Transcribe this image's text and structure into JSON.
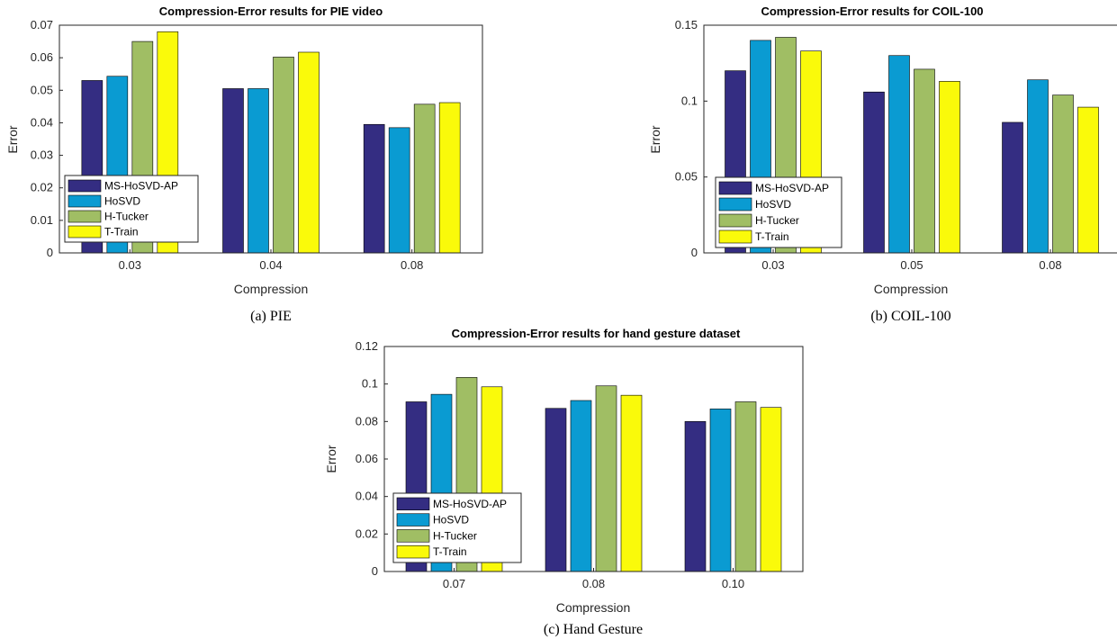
{
  "palette": [
    "#342D82",
    "#0A9BD2",
    "#A0BE64",
    "#FAFA0A"
  ],
  "chart_data": [
    {
      "type": "bar",
      "title": "Compression-Error results for PIE video",
      "xlabel": "Compression",
      "ylabel": "Error",
      "caption": "(a) PIE",
      "categories": [
        "0.03",
        "0.04",
        "0.08"
      ],
      "ylim": [
        0,
        0.07
      ],
      "yticks": [
        "0",
        "0.01",
        "0.02",
        "0.03",
        "0.04",
        "0.05",
        "0.06",
        "0.07"
      ],
      "ytick_values": [
        0,
        0.01,
        0.02,
        0.03,
        0.04,
        0.05,
        0.06,
        0.07
      ],
      "legend_position": "bottom-left",
      "grid": false,
      "series": [
        {
          "name": "MS-HoSVD-AP",
          "values": [
            0.053,
            0.0505,
            0.0395
          ]
        },
        {
          "name": "HoSVD",
          "values": [
            0.0543,
            0.0505,
            0.0385
          ]
        },
        {
          "name": "H-Tucker",
          "values": [
            0.065,
            0.0602,
            0.0457
          ]
        },
        {
          "name": "T-Train",
          "values": [
            0.068,
            0.0617,
            0.0462
          ]
        }
      ]
    },
    {
      "type": "bar",
      "title": "Compression-Error results for COIL-100",
      "xlabel": "Compression",
      "ylabel": "Error",
      "caption": "(b) COIL-100",
      "categories": [
        "0.03",
        "0.05",
        "0.08"
      ],
      "ylim": [
        0,
        0.15
      ],
      "yticks": [
        "0",
        "0.05",
        "0.1",
        "0.15"
      ],
      "ytick_values": [
        0,
        0.05,
        0.1,
        0.15
      ],
      "legend_position": "bottom-left",
      "grid": false,
      "series": [
        {
          "name": "MS-HoSVD-AP",
          "values": [
            0.12,
            0.106,
            0.086
          ]
        },
        {
          "name": "HoSVD",
          "values": [
            0.14,
            0.13,
            0.114
          ]
        },
        {
          "name": "H-Tucker",
          "values": [
            0.142,
            0.121,
            0.104
          ]
        },
        {
          "name": "T-Train",
          "values": [
            0.133,
            0.113,
            0.096
          ]
        }
      ]
    },
    {
      "type": "bar",
      "title": "Compression-Error results for hand gesture dataset",
      "xlabel": "Compression",
      "ylabel": "Error",
      "caption": "(c) Hand Gesture",
      "categories": [
        "0.07",
        "0.08",
        "0.10"
      ],
      "ylim": [
        0,
        0.12
      ],
      "yticks": [
        "0",
        "0.02",
        "0.04",
        "0.06",
        "0.08",
        "0.1",
        "0.12"
      ],
      "ytick_values": [
        0,
        0.02,
        0.04,
        0.06,
        0.08,
        0.1,
        0.12
      ],
      "legend_position": "bottom-left",
      "grid": false,
      "series": [
        {
          "name": "MS-HoSVD-AP",
          "values": [
            0.0905,
            0.087,
            0.08
          ]
        },
        {
          "name": "HoSVD",
          "values": [
            0.0945,
            0.0912,
            0.0867
          ]
        },
        {
          "name": "H-Tucker",
          "values": [
            0.1035,
            0.099,
            0.0905
          ]
        },
        {
          "name": "T-Train",
          "values": [
            0.0985,
            0.094,
            0.0875
          ]
        }
      ]
    }
  ]
}
